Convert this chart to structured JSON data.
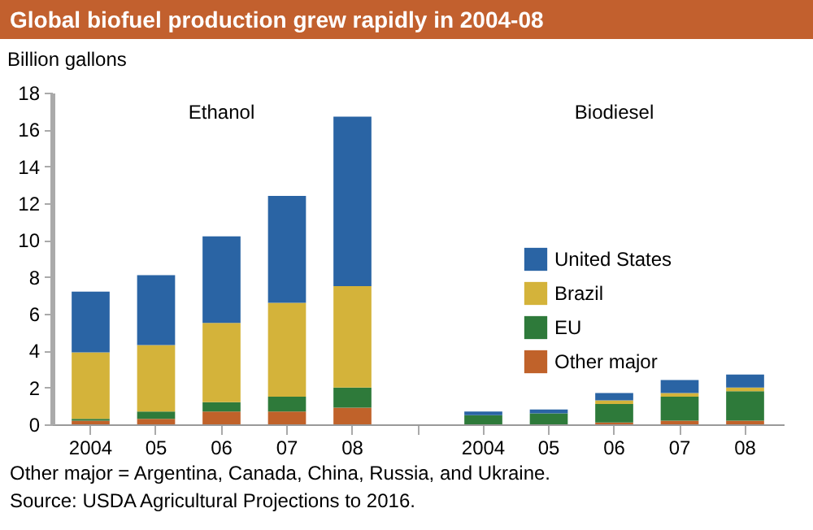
{
  "chart_data": {
    "type": "bar",
    "title": "Global biofuel production grew rapidly in 2004-08",
    "ylabel": "Billion gallons",
    "categories": [
      "2004",
      "05",
      "06",
      "07",
      "08",
      null,
      "2004",
      "05",
      "06",
      "07",
      "08"
    ],
    "stacked": true,
    "series": [
      {
        "name": "Other major",
        "color": "#c0622a",
        "values": [
          0.2,
          0.3,
          0.7,
          0.7,
          0.9,
          null,
          0,
          0,
          0.1,
          0.2,
          0.2
        ]
      },
      {
        "name": "EU",
        "color": "#2e7a3a",
        "values": [
          0.1,
          0.4,
          0.5,
          0.8,
          1.1,
          null,
          0.5,
          0.6,
          1.0,
          1.3,
          1.6
        ]
      },
      {
        "name": "Brazil",
        "color": "#d4b33a",
        "values": [
          3.6,
          3.6,
          4.3,
          5.1,
          5.5,
          null,
          0,
          0,
          0.2,
          0.2,
          0.2
        ]
      },
      {
        "name": "United States",
        "color": "#2a64a4",
        "values": [
          3.3,
          3.8,
          4.7,
          5.8,
          9.2,
          null,
          0.2,
          0.2,
          0.4,
          0.7,
          0.7
        ]
      }
    ],
    "ylim": [
      0,
      18
    ],
    "yticks": [
      0,
      2,
      4,
      6,
      8,
      10,
      12,
      14,
      16,
      18
    ],
    "grid": false,
    "legend": "right",
    "annotations": [
      "Ethanol",
      "Biodiesel",
      "Other major = Argentina, Canada, China, Russia, and Ukraine.",
      "Source: USDA Agricultural Projections to 2016."
    ]
  }
}
